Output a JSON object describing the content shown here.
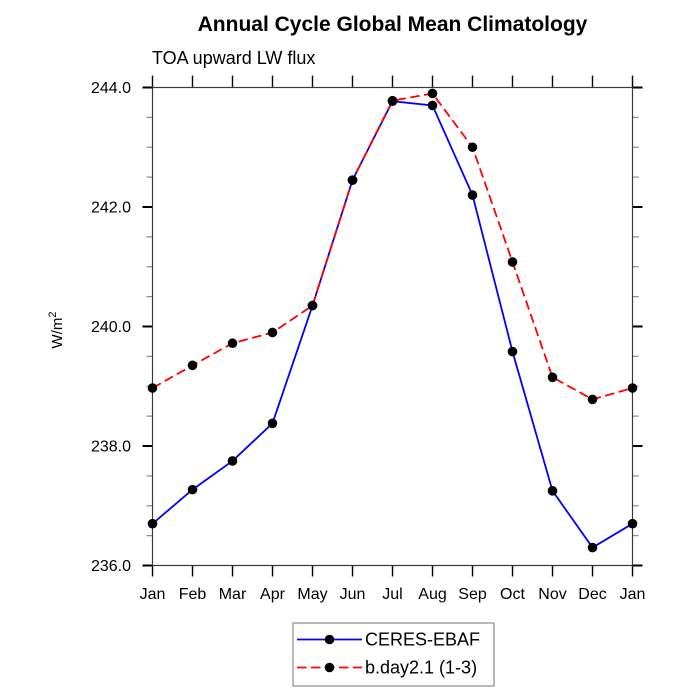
{
  "title": "Annual Cycle Global Mean Climatology",
  "subtitle": "TOA upward LW flux",
  "chart_data": {
    "type": "line",
    "title": "Annual Cycle Global Mean Climatology",
    "subtitle": "TOA upward LW flux",
    "ylabel": "W/m²",
    "xlabel": "",
    "categories": [
      "Jan",
      "Feb",
      "Mar",
      "Apr",
      "May",
      "Jun",
      "Jul",
      "Aug",
      "Sep",
      "Oct",
      "Nov",
      "Dec",
      "Jan"
    ],
    "ylim": [
      236.0,
      244.0
    ],
    "y_major_tick_step": 2.0,
    "y_minor_tick_step": 0.5,
    "y_tick_labels": [
      "236.0",
      "238.0",
      "240.0",
      "242.0",
      "244.0"
    ],
    "grid": false,
    "legend_position": "bottom-center",
    "series": [
      {
        "name": "CERES-EBAF",
        "color": "#0000ff",
        "line_style": "solid",
        "marker": "filled-circle",
        "marker_color": "#000000",
        "values": [
          236.7,
          237.27,
          237.75,
          238.38,
          240.35,
          242.45,
          243.77,
          243.7,
          242.2,
          239.58,
          237.25,
          236.3,
          236.7
        ]
      },
      {
        "name": "b.day2.1 (1-3)",
        "color": "#ff0000",
        "line_style": "dashed",
        "marker": "filled-circle",
        "marker_color": "#000000",
        "values": [
          238.97,
          239.35,
          239.72,
          239.9,
          240.35,
          242.45,
          243.78,
          243.9,
          243.0,
          241.08,
          239.15,
          238.78,
          238.97
        ]
      }
    ]
  },
  "colors": {
    "background": "#ffffff",
    "frame": "#3a3a3a",
    "major_tick": "#000000",
    "minor_tick": "#8a8a8a",
    "text": "#000000",
    "legend_border": "#8c8c8c"
  }
}
